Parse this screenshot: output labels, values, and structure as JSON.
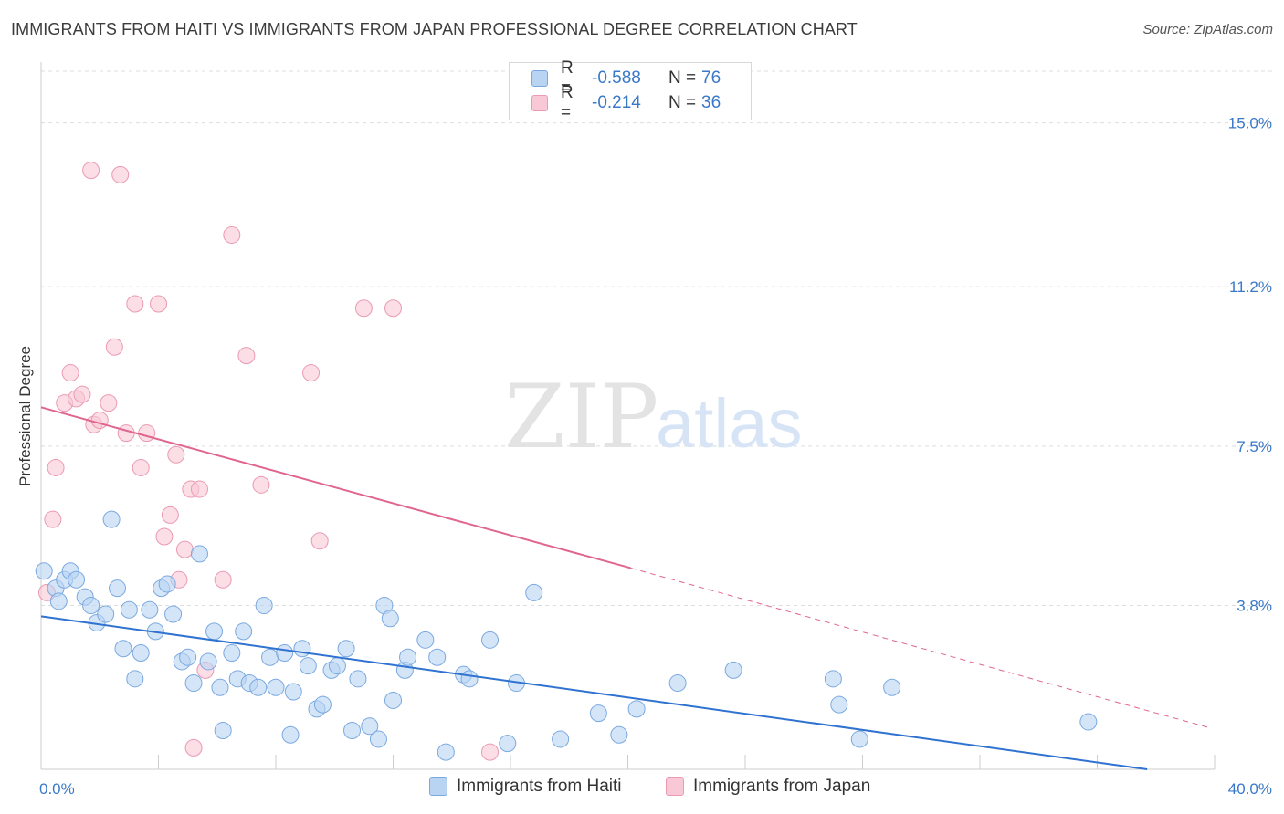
{
  "title": "IMMIGRANTS FROM HAITI VS IMMIGRANTS FROM JAPAN PROFESSIONAL DEGREE CORRELATION CHART",
  "source": "Source: ZipAtlas.com",
  "watermark": {
    "zip": "ZIP",
    "atlas": "atlas"
  },
  "legend": {
    "haiti": {
      "r_label": "R =",
      "r_value": "-0.588",
      "n_label": "N =",
      "n_value": "76"
    },
    "japan": {
      "r_label": "R =",
      "r_value": "-0.214",
      "n_label": "N =",
      "n_value": "36"
    }
  },
  "colors": {
    "haiti_fill": "#b9d3f3",
    "haiti_stroke": "#7aa9e0",
    "haiti_line": "#2f72d0",
    "japan_fill": "#f9c8d6",
    "japan_stroke": "#eb9ab3",
    "japan_line": "#e0658f",
    "tick_label": "#3a78c9",
    "grid": "#dddddd"
  },
  "chart_data": {
    "type": "scatter",
    "title": "IMMIGRANTS FROM HAITI VS IMMIGRANTS FROM JAPAN PROFESSIONAL DEGREE CORRELATION CHART",
    "xlabel": "",
    "ylabel": "Professional Degree",
    "xlim": [
      0,
      40
    ],
    "ylim": [
      0,
      16.2
    ],
    "x_tick_labels": [
      "0.0%",
      "40.0%"
    ],
    "y_ticks": [
      3.8,
      7.5,
      11.2,
      15.0
    ],
    "y_tick_labels": [
      "3.8%",
      "7.5%",
      "11.2%",
      "15.0%"
    ],
    "grid": "horizontal dashed",
    "legend_position": "top-center and bottom",
    "series": [
      {
        "name": "Immigrants from Haiti",
        "R": -0.588,
        "N": 76,
        "trend": {
          "x": [
            0,
            37.7
          ],
          "y": [
            3.55,
            0
          ]
        },
        "trend_dashed": null,
        "points": [
          [
            0.1,
            4.6
          ],
          [
            0.5,
            4.2
          ],
          [
            0.6,
            3.9
          ],
          [
            0.8,
            4.4
          ],
          [
            1.0,
            4.6
          ],
          [
            1.2,
            4.4
          ],
          [
            1.5,
            4.0
          ],
          [
            1.7,
            3.8
          ],
          [
            1.9,
            3.4
          ],
          [
            2.2,
            3.6
          ],
          [
            2.4,
            5.8
          ],
          [
            2.6,
            4.2
          ],
          [
            2.8,
            2.8
          ],
          [
            3.0,
            3.7
          ],
          [
            3.2,
            2.1
          ],
          [
            3.4,
            2.7
          ],
          [
            3.7,
            3.7
          ],
          [
            3.9,
            3.2
          ],
          [
            4.1,
            4.2
          ],
          [
            4.3,
            4.3
          ],
          [
            4.5,
            3.6
          ],
          [
            4.8,
            2.5
          ],
          [
            5.0,
            2.6
          ],
          [
            5.2,
            2.0
          ],
          [
            5.4,
            5.0
          ],
          [
            5.7,
            2.5
          ],
          [
            5.9,
            3.2
          ],
          [
            6.1,
            1.9
          ],
          [
            6.2,
            0.9
          ],
          [
            6.5,
            2.7
          ],
          [
            6.7,
            2.1
          ],
          [
            6.9,
            3.2
          ],
          [
            7.1,
            2.0
          ],
          [
            7.4,
            1.9
          ],
          [
            7.6,
            3.8
          ],
          [
            7.8,
            2.6
          ],
          [
            8.0,
            1.9
          ],
          [
            8.3,
            2.7
          ],
          [
            8.5,
            0.8
          ],
          [
            8.6,
            1.8
          ],
          [
            8.9,
            2.8
          ],
          [
            9.1,
            2.4
          ],
          [
            9.4,
            1.4
          ],
          [
            9.6,
            1.5
          ],
          [
            9.9,
            2.3
          ],
          [
            10.1,
            2.4
          ],
          [
            10.4,
            2.8
          ],
          [
            10.6,
            0.9
          ],
          [
            10.8,
            2.1
          ],
          [
            11.2,
            1.0
          ],
          [
            11.5,
            0.7
          ],
          [
            11.7,
            3.8
          ],
          [
            11.9,
            3.5
          ],
          [
            12.0,
            1.6
          ],
          [
            12.4,
            2.3
          ],
          [
            12.5,
            2.6
          ],
          [
            13.1,
            3.0
          ],
          [
            13.5,
            2.6
          ],
          [
            13.8,
            0.4
          ],
          [
            14.4,
            2.2
          ],
          [
            14.6,
            2.1
          ],
          [
            15.3,
            3.0
          ],
          [
            15.9,
            0.6
          ],
          [
            16.2,
            2.0
          ],
          [
            16.8,
            4.1
          ],
          [
            17.7,
            0.7
          ],
          [
            19.0,
            1.3
          ],
          [
            19.7,
            0.8
          ],
          [
            20.3,
            1.4
          ],
          [
            21.7,
            2.0
          ],
          [
            23.6,
            2.3
          ],
          [
            27.0,
            2.1
          ],
          [
            27.2,
            1.5
          ],
          [
            27.9,
            0.7
          ],
          [
            29.0,
            1.9
          ],
          [
            35.7,
            1.1
          ]
        ]
      },
      {
        "name": "Immigrants from Japan",
        "R": -0.214,
        "N": 36,
        "trend": {
          "x": [
            0,
            20.1
          ],
          "y": [
            8.4,
            4.67
          ]
        },
        "trend_dashed": {
          "x": [
            20.1,
            39.9
          ],
          "y": [
            4.67,
            0.95
          ]
        },
        "points": [
          [
            0.2,
            4.1
          ],
          [
            0.4,
            5.8
          ],
          [
            0.5,
            7.0
          ],
          [
            0.8,
            8.5
          ],
          [
            1.0,
            9.2
          ],
          [
            1.2,
            8.6
          ],
          [
            1.4,
            8.7
          ],
          [
            1.7,
            13.9
          ],
          [
            1.8,
            8.0
          ],
          [
            2.0,
            8.1
          ],
          [
            2.3,
            8.5
          ],
          [
            2.5,
            9.8
          ],
          [
            2.7,
            13.8
          ],
          [
            2.9,
            7.8
          ],
          [
            3.2,
            10.8
          ],
          [
            3.4,
            7.0
          ],
          [
            3.6,
            7.8
          ],
          [
            4.0,
            10.8
          ],
          [
            4.2,
            5.4
          ],
          [
            4.4,
            5.9
          ],
          [
            4.6,
            7.3
          ],
          [
            4.7,
            4.4
          ],
          [
            4.9,
            5.1
          ],
          [
            5.1,
            6.5
          ],
          [
            5.2,
            0.5
          ],
          [
            5.4,
            6.5
          ],
          [
            5.6,
            2.3
          ],
          [
            6.2,
            4.4
          ],
          [
            6.5,
            12.4
          ],
          [
            7.0,
            9.6
          ],
          [
            7.5,
            6.6
          ],
          [
            9.2,
            9.2
          ],
          [
            9.5,
            5.3
          ],
          [
            11.0,
            10.7
          ],
          [
            12.0,
            10.7
          ],
          [
            15.3,
            0.4
          ]
        ]
      }
    ]
  },
  "bottom_legend": {
    "haiti": "Immigrants from Haiti",
    "japan": "Immigrants from Japan"
  }
}
